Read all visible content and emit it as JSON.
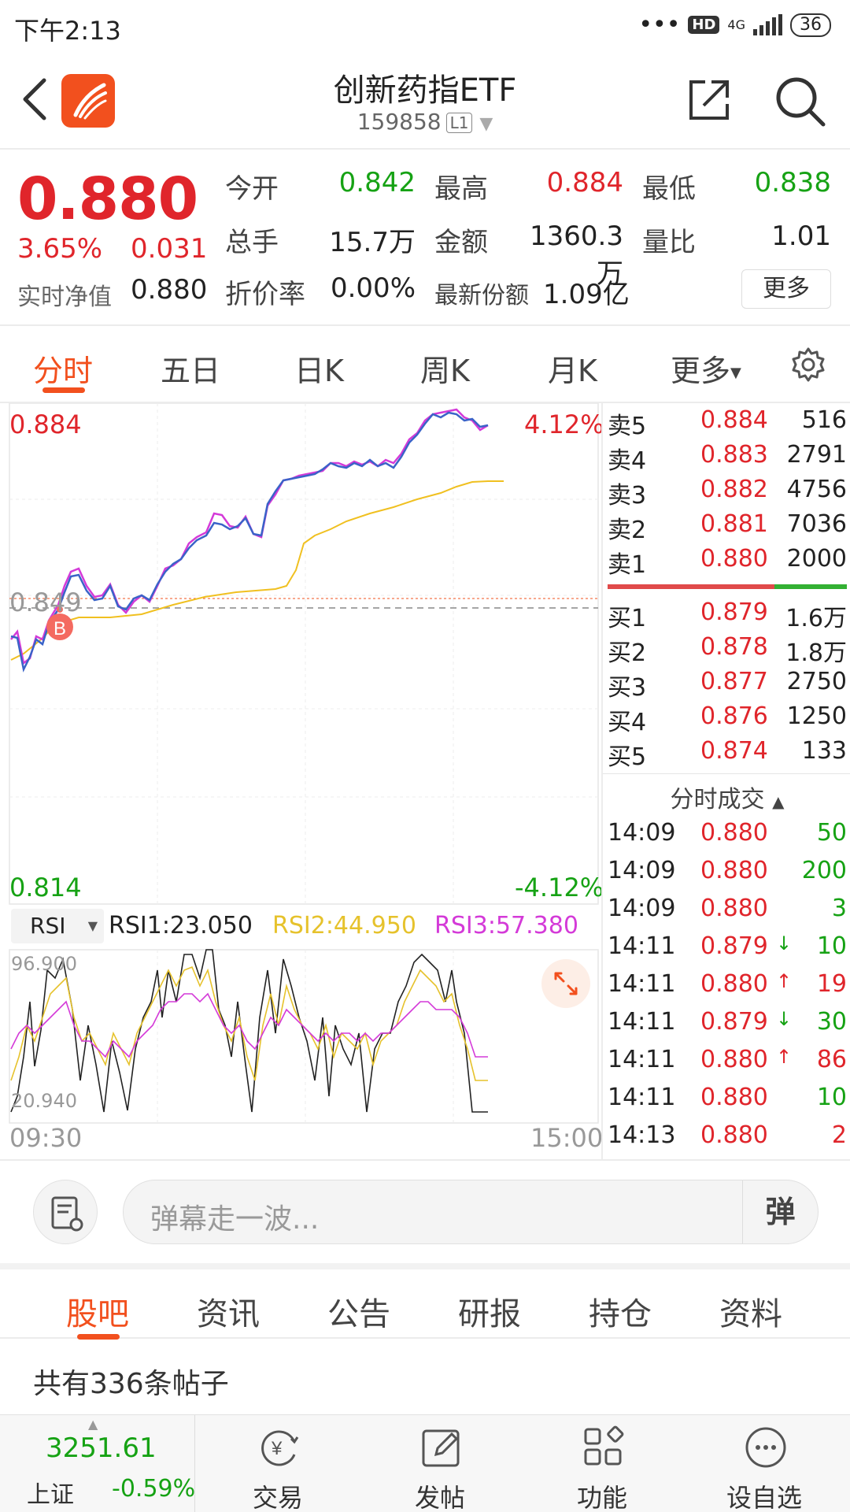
{
  "status": {
    "time": "下午2:13",
    "dots": "•••",
    "hd": "HD",
    "net": "4G",
    "battery": "36"
  },
  "header": {
    "title": "创新药指ETF",
    "code": "159858",
    "level": "L1"
  },
  "quote": {
    "price": "0.880",
    "pct": "3.65%",
    "change": "0.031",
    "nav_label": "实时净值",
    "nav_value": "0.880",
    "open_label": "今开",
    "open": "0.842",
    "high_label": "最高",
    "high": "0.884",
    "low_label": "最低",
    "low": "0.838",
    "volume_label": "总手",
    "volume": "15.7万",
    "amount_label": "金额",
    "amount": "1360.3万",
    "ratio_label": "量比",
    "ratio": "1.01",
    "discount_label": "折价率",
    "discount": "0.00%",
    "shares_label": "最新份额",
    "shares": "1.09亿",
    "more": "更多"
  },
  "tabs": [
    "分时",
    "五日",
    "日K",
    "周K",
    "月K",
    "更多"
  ],
  "chart": {
    "top_price": "0.884",
    "top_pct": "4.12%",
    "mid_price": "0.849",
    "bottom_price": "0.814",
    "bottom_pct": "-4.12%",
    "marker": "B",
    "indicator": "RSI",
    "rsi1": "RSI1:23.050",
    "rsi2": "RSI2:44.950",
    "rsi3": "RSI3:57.380",
    "rsi_top": "96.900",
    "rsi_bottom": "20.940",
    "time_start": "09:30",
    "time_end": "15:00",
    "colors": {
      "price": "#3a63c8",
      "price_alt": "#d43ad8",
      "avg": "#f0c020",
      "rsi1": "#222222",
      "rsi2": "#e6c22c",
      "rsi3": "#d43ad8"
    }
  },
  "orderbook": {
    "asks": [
      {
        "label": "卖5",
        "price": "0.884",
        "vol": "516"
      },
      {
        "label": "卖4",
        "price": "0.883",
        "vol": "2791"
      },
      {
        "label": "卖3",
        "price": "0.882",
        "vol": "4756"
      },
      {
        "label": "卖2",
        "price": "0.881",
        "vol": "7036"
      },
      {
        "label": "卖1",
        "price": "0.880",
        "vol": "2000"
      }
    ],
    "bids": [
      {
        "label": "买1",
        "price": "0.879",
        "vol": "1.6万"
      },
      {
        "label": "买2",
        "price": "0.878",
        "vol": "1.8万"
      },
      {
        "label": "买3",
        "price": "0.877",
        "vol": "2750"
      },
      {
        "label": "买4",
        "price": "0.876",
        "vol": "1250"
      },
      {
        "label": "买5",
        "price": "0.874",
        "vol": "133"
      }
    ],
    "trades_title": "分时成交",
    "trades": [
      {
        "time": "14:09",
        "price": "0.880",
        "arrow": "",
        "vol": "50"
      },
      {
        "time": "14:09",
        "price": "0.880",
        "arrow": "",
        "vol": "200"
      },
      {
        "time": "14:09",
        "price": "0.880",
        "arrow": "",
        "vol": "3"
      },
      {
        "time": "14:11",
        "price": "0.879",
        "arrow": "↓",
        "vol": "10"
      },
      {
        "time": "14:11",
        "price": "0.880",
        "arrow": "↑",
        "vol": "19"
      },
      {
        "time": "14:11",
        "price": "0.879",
        "arrow": "↓",
        "vol": "30"
      },
      {
        "time": "14:11",
        "price": "0.880",
        "arrow": "↑",
        "vol": "86"
      },
      {
        "time": "14:11",
        "price": "0.880",
        "arrow": "",
        "vol": "10"
      },
      {
        "time": "14:13",
        "price": "0.880",
        "arrow": "",
        "vol": "2"
      }
    ]
  },
  "comment": {
    "placeholder": "弹幕走一波...",
    "danmu": "弹"
  },
  "subtabs": [
    "股吧",
    "资讯",
    "公告",
    "研报",
    "持仓",
    "资料"
  ],
  "post_count": "共有336条帖子",
  "bottomnav": {
    "index_value": "3251.61",
    "index_name": "上证",
    "index_pct": "-0.59%",
    "items": [
      "交易",
      "发帖",
      "功能",
      "设自选"
    ]
  }
}
